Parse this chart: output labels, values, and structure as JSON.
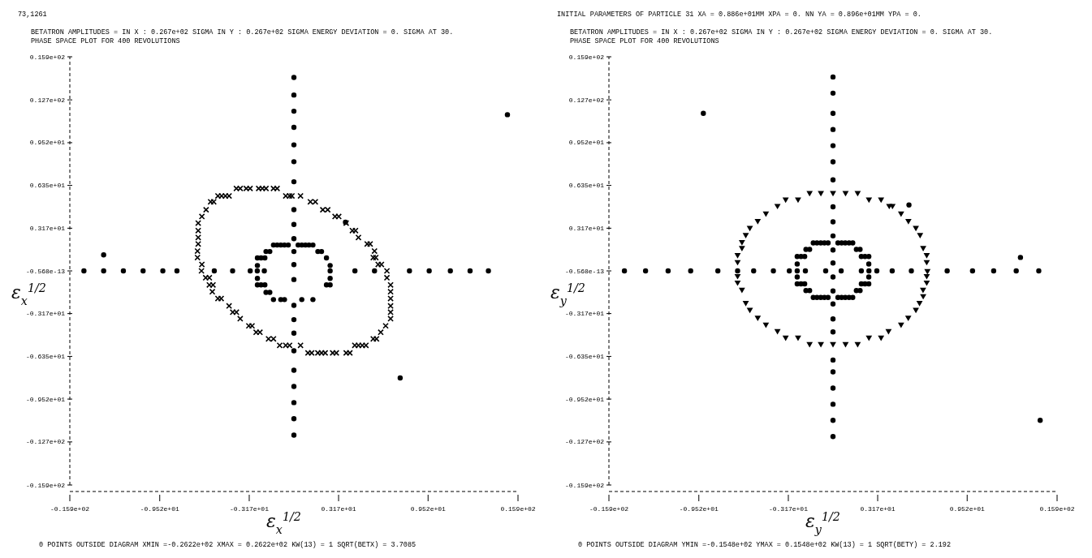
{
  "chart_data": [
    {
      "type": "scatter",
      "title": "BETATRON AMPLITUDES = IN X : 0.267e+02 SIGMA   IN Y : 0.267e+02 SIGMA   ENERGY DEVIATION = 0.   SIGMA AT 30.",
      "subtitle": "PHASE SPACE PLOT FOR 400 REVOLUTIONS",
      "xlabel": "ε$_{x}$$^{1/2}$",
      "ylabel": "ε$_{x}$$^{1/2}$",
      "annotations": [
        "73,1261",
        "0  POINTS OUTSIDE DIAGRAM   XMIN =-0.2622e+02   XMAX = 0.2622e+02   KW(13) = 1   SQRT(BETX) =   3.7085"
      ],
      "xlim": [
        -15.9,
        15.9
      ],
      "ylim": [
        -15.9,
        15.9
      ],
      "xticks": [
        {
          "value": -15.9,
          "label": "-0.159e+02"
        },
        {
          "value": -9.52,
          "label": "-0.952e+01"
        },
        {
          "value": -3.17,
          "label": "-0.317e+01"
        },
        {
          "value": 3.17,
          "label": "0.317e+01"
        },
        {
          "value": 9.52,
          "label": "0.952e+01"
        },
        {
          "value": 15.9,
          "label": "0.159e+02"
        }
      ],
      "yticks": [
        {
          "value": 15.9,
          "label": "0.159e+02"
        },
        {
          "value": 12.7,
          "label": "0.127e+02"
        },
        {
          "value": 9.52,
          "label": "0.952e+01"
        },
        {
          "value": 6.35,
          "label": "0.635e+01"
        },
        {
          "value": 3.17,
          "label": "0.317e+01"
        },
        {
          "value": 0,
          "label": "-0.568e-13"
        },
        {
          "value": -3.17,
          "label": "-0.317e+01"
        },
        {
          "value": -6.35,
          "label": "-0.635e+01"
        },
        {
          "value": -9.52,
          "label": "-0.952e+01"
        },
        {
          "value": -12.7,
          "label": "-0.127e+02"
        },
        {
          "value": -15.9,
          "label": "-0.159e+02"
        }
      ],
      "grid": false,
      "line_style": "dashed",
      "series": [
        {
          "marker": "cross",
          "color": "#000000",
          "x": [
            -4.08,
            -3.81,
            -3.38,
            -3.11,
            -2.5,
            -2.24,
            -1.98,
            -1.45,
            -1.19,
            -0.58,
            -0.31,
            -0.14,
            0.47,
            -5.39,
            -5.13,
            -4.86,
            -4.6,
            -5.91,
            -5.69,
            1.17,
            1.52,
            -6.23,
            2.05,
            2.4,
            -6.53,
            2.92,
            3.18,
            -6.79,
            3.71,
            -6.79,
            4.15,
            4.37,
            -6.79,
            4.58,
            -6.79,
            5.2,
            5.41,
            -6.84,
            5.72,
            -6.84,
            5.63,
            5.81,
            -6.53,
            5.98,
            6.21,
            -6.56,
            6.6,
            -6.26,
            -6,
            6.6,
            -6,
            -5.74,
            6.86,
            -5.79,
            6.86,
            -5.39,
            -5.16,
            6.86,
            -4.6,
            6.86,
            -4.34,
            -4.08,
            6.86,
            -3.81,
            6.86,
            -3.2,
            -2.97,
            6.51,
            -2.68,
            -2.41,
            6.16,
            -1.8,
            -1.45,
            5.63,
            5.86,
            -1.01,
            -0.58,
            -0.31,
            0.47,
            4.32,
            4.58,
            4.85,
            5.11,
            1,
            1.26,
            1.7,
            1.96,
            2.22,
            2.75,
            3.01,
            3.71,
            3.97
          ],
          "values": [
            6.12,
            6.12,
            6.12,
            6.12,
            6.12,
            6.12,
            6.12,
            6.12,
            6.12,
            5.57,
            5.57,
            5.57,
            5.57,
            5.57,
            5.57,
            5.57,
            5.57,
            5.13,
            5.13,
            5.13,
            5.13,
            4.54,
            4.54,
            4.54,
            4.04,
            4.04,
            4.04,
            3.55,
            3.55,
            2.99,
            2.99,
            2.99,
            2.48,
            2.48,
            2,
            2,
            2,
            1.47,
            1.47,
            0.99,
            0.99,
            0.99,
            0.48,
            0.48,
            0.48,
            0,
            0,
            -0.51,
            -0.51,
            -0.51,
            -1.04,
            -1.04,
            -1.04,
            -1.55,
            -1.55,
            -2.05,
            -2.05,
            -2.05,
            -2.6,
            -2.6,
            -3.07,
            -3.07,
            -3.07,
            -3.55,
            -3.55,
            -4.08,
            -4.08,
            -4.08,
            -4.56,
            -4.56,
            -4.56,
            -5.05,
            -5.05,
            -5.05,
            -5.05,
            -5.53,
            -5.53,
            -5.53,
            -5.53,
            -5.53,
            -5.53,
            -5.53,
            -5.53,
            -6.09,
            -6.09,
            -6.09,
            -6.09,
            -6.09,
            -6.09,
            -6.09,
            -6.09,
            -6.09
          ]
        },
        {
          "marker": "circle",
          "color": "#000000",
          "x": [
            -14.9,
            -13.5,
            -12.1,
            -10.7,
            -9.3,
            -8.3,
            -5.65,
            -4.35,
            -3.1,
            -2.6,
            -2.1,
            2.57,
            4.33,
            5.72,
            8.2,
            9.6,
            11.1,
            12.5,
            13.8,
            0,
            0,
            0,
            0,
            0,
            0,
            0,
            0,
            0,
            0,
            0,
            0,
            0,
            0,
            0,
            0,
            0,
            0,
            0,
            0,
            0,
            0,
            -1.45,
            -1.19,
            -0.93,
            -0.67,
            -0.4,
            0.3,
            0.56,
            0.82,
            1.07,
            1.35,
            -1.98,
            -1.71,
            1.7,
            1.96,
            -2.59,
            -2.33,
            -2.06,
            2.31,
            -2.59,
            2.57,
            -2.59,
            2.57,
            -2.59,
            -2.33,
            -2.06,
            2.31,
            2.57,
            -1.98,
            -1.71,
            -1.45,
            -0.93,
            -0.67,
            0.56,
            1.35,
            -13.5,
            3.66,
            7.54,
            15.15
          ],
          "values": [
            0,
            0,
            0,
            0,
            0,
            0,
            0,
            0,
            0,
            0,
            0,
            0,
            0,
            0,
            0,
            0,
            0,
            0,
            0,
            14.36,
            13.06,
            11.86,
            10.66,
            9.36,
            8.11,
            6.62,
            4.55,
            3.45,
            2.39,
            1.44,
            0.47,
            -0.64,
            -2.56,
            -3.62,
            -4.62,
            -5.93,
            -7.38,
            -8.58,
            -9.78,
            -10.98,
            -12.2,
            1.92,
            1.92,
            1.92,
            1.92,
            1.92,
            1.92,
            1.92,
            1.92,
            1.92,
            1.92,
            1.44,
            1.44,
            1.44,
            1.44,
            0.96,
            0.96,
            0.96,
            0.96,
            0.4,
            0.4,
            -0.56,
            -0.56,
            -1.04,
            -1.04,
            -1.04,
            -1.04,
            -1.04,
            -1.6,
            -1.6,
            -2.13,
            -2.13,
            -2.13,
            -2.13,
            -2.13,
            1.19,
            3.61,
            -7.95,
            11.6
          ]
        }
      ]
    },
    {
      "type": "scatter",
      "title": "BETATRON AMPLITUDES = IN X : 0.267e+02 SIGMA   IN Y : 0.267e+02 SIGMA   ENERGY DEVIATION = 0.   SIGMA AT 30.",
      "subtitle": "PHASE SPACE PLOT FOR 400 REVOLUTIONS",
      "xlabel": "ε$_{y}$$^{1/2}$",
      "ylabel": "ε$_{y}$$^{1/2}$",
      "annotations": [
        "INITIAL PARAMETERS OF PARTICLE 31   XA = 0.886e+01MM   XPA = 0.   NN   YA = 0.896e+01MM   YPA = 0.",
        "0  POINTS OUTSIDE DIAGRAM   YMIN =-0.1548e+02   YMAX = 0.1548e+02   KW(13) = 1   SQRT(BETY) =   2.192"
      ],
      "xlim": [
        -15.9,
        15.9
      ],
      "ylim": [
        -15.9,
        15.9
      ],
      "xticks": [
        {
          "value": -15.9,
          "label": "-0.159e+02"
        },
        {
          "value": -9.52,
          "label": "-0.952e+01"
        },
        {
          "value": -3.17,
          "label": "-0.317e+01"
        },
        {
          "value": 3.17,
          "label": "0.317e+01"
        },
        {
          "value": 9.52,
          "label": "0.952e+01"
        },
        {
          "value": 15.9,
          "label": "0.159e+02"
        }
      ],
      "yticks": [
        {
          "value": 15.9,
          "label": "0.159e+02"
        },
        {
          "value": 12.7,
          "label": "0.127e+02"
        },
        {
          "value": 9.52,
          "label": "0.952e+01"
        },
        {
          "value": 6.35,
          "label": "0.635e+01"
        },
        {
          "value": 3.17,
          "label": "0.317e+01"
        },
        {
          "value": 0,
          "label": "-0.568e-13"
        },
        {
          "value": -3.17,
          "label": "-0.317e+01"
        },
        {
          "value": -6.35,
          "label": "-0.635e+01"
        },
        {
          "value": -9.52,
          "label": "-0.952e+01"
        },
        {
          "value": -12.7,
          "label": "-0.127e+02"
        },
        {
          "value": -15.9,
          "label": "-0.159e+02"
        }
      ],
      "grid": false,
      "line_style": "dashed",
      "series": [
        {
          "marker": "triangle",
          "color": "#000000",
          "x": [
            -1.66,
            -0.86,
            0,
            0.89,
            1.75,
            -3.36,
            -2.48,
            2.55,
            3.41,
            -3.94,
            3.99,
            4.22,
            -4.76,
            4.83,
            -5.34,
            5.35,
            -5.9,
            5.88,
            -6.19,
            6.18,
            -6.46,
            -6.46,
            6.4,
            -6.77,
            6.65,
            -6.77,
            6.65,
            6.7,
            -6.77,
            6.65,
            -6.77,
            6.65,
            -6.46,
            6.39,
            6.4,
            -6.19,
            6.14,
            -5.9,
            5.88,
            -5.34,
            5.34,
            -4.76,
            4.83,
            -3.94,
            3.94,
            -3.36,
            -2.48,
            2.55,
            3.41,
            -1.66,
            -0.86,
            0,
            0.89,
            1.75
          ],
          "values": [
            5.8,
            5.8,
            5.8,
            5.8,
            5.8,
            5.32,
            5.32,
            5.32,
            5.32,
            4.84,
            4.84,
            4.84,
            4.28,
            4.28,
            3.72,
            3.72,
            3.21,
            3.21,
            2.68,
            2.68,
            2.15,
            1.71,
            1.71,
            1.19,
            1.19,
            0.67,
            0.67,
            0,
            -0.37,
            -0.37,
            -0.85,
            -0.85,
            -1.38,
            -1.38,
            -1.86,
            -2.37,
            -2.37,
            -2.88,
            -2.88,
            -3.46,
            -3.46,
            -3.97,
            -3.97,
            -4.46,
            -4.46,
            -4.94,
            -4.94,
            -4.94,
            -4.94,
            -5.42,
            -5.42,
            -5.42,
            -5.42,
            -5.42
          ]
        },
        {
          "marker": "circle",
          "color": "#000000",
          "x": [
            -14.8,
            -13.3,
            -11.7,
            -10.1,
            -8.17,
            -6.77,
            -5.63,
            -4.23,
            -3.1,
            -2.54,
            -1.96,
            -0.52,
            0.58,
            2.01,
            2.55,
            3.11,
            4.2,
            5.56,
            8.1,
            9.9,
            11.4,
            13,
            14.6,
            0,
            0,
            0,
            0,
            0,
            0,
            0,
            0,
            0,
            0,
            0,
            0,
            0,
            0,
            0,
            0,
            0,
            0,
            0,
            0,
            0,
            0,
            0,
            -1.4,
            -1.14,
            -0.87,
            -0.61,
            -0.35,
            0.35,
            0.61,
            0.87,
            1.14,
            1.4,
            -1.92,
            -1.66,
            1.66,
            1.92,
            -2.54,
            -2.27,
            -2.01,
            2.01,
            2.27,
            2.54,
            -2.54,
            2.54,
            -2.54,
            2.54,
            -2.54,
            -2.27,
            -2.01,
            2.01,
            2.27,
            2.54,
            -1.92,
            -1.66,
            1.66,
            1.92,
            -1.4,
            -1.14,
            -0.87,
            -0.61,
            -0.35,
            0.35,
            0.61,
            0.87,
            1.14,
            1.4,
            13.3,
            5.39,
            -9.2,
            14.7
          ],
          "values": [
            0,
            0,
            0,
            0,
            0,
            0,
            0,
            0,
            0,
            0,
            0,
            0,
            0,
            0,
            0,
            0,
            0,
            0,
            0,
            0,
            0,
            0,
            0,
            14.4,
            13.2,
            11.7,
            10.5,
            9.3,
            8.1,
            6.76,
            4.76,
            3.64,
            2.6,
            1.55,
            0.59,
            -0.45,
            -1.49,
            -2.45,
            -3.57,
            -4.53,
            -6.62,
            -7.5,
            -8.7,
            -9.9,
            -11.1,
            -12.3,
            2.08,
            2.08,
            2.08,
            2.08,
            2.08,
            2.08,
            2.08,
            2.08,
            2.08,
            2.08,
            1.6,
            1.6,
            1.6,
            1.6,
            1.07,
            1.07,
            1.07,
            1.07,
            1.07,
            1.07,
            0.51,
            0.51,
            -0.45,
            -0.45,
            -0.96,
            -0.96,
            -0.96,
            -0.96,
            -0.96,
            -0.96,
            -1.46,
            -1.46,
            -1.46,
            -1.46,
            -1.97,
            -1.97,
            -1.97,
            -1.97,
            -1.97,
            -1.97,
            -1.97,
            -1.97,
            -1.97,
            -1.97,
            1,
            4.89,
            11.7,
            -11.1
          ]
        }
      ]
    }
  ]
}
